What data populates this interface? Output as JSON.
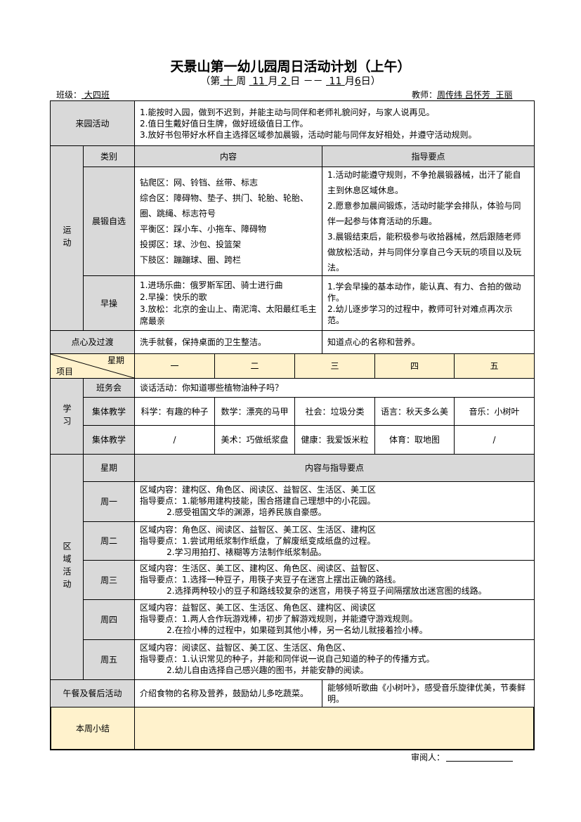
{
  "title": "天景山第一幼儿园周日活动计划（上午）",
  "week": {
    "open": "（第",
    "week_no": "十",
    "week_label": "周",
    "m1": "11",
    "m_label1": "月",
    "d1": "2",
    "d_label1": "日 －－",
    "m2": "11",
    "m_label2": "月",
    "d2": "6",
    "close": "日）"
  },
  "class": {
    "label": "班级：",
    "value": "大四班"
  },
  "teacher": {
    "label": "教师：",
    "value": "周传纬 吕怀芳  王丽"
  },
  "arrival": {
    "label": "来园活动",
    "lines": [
      "1.能按时入园，做到不迟到，并能主动与同伴和老师礼貌问好，与家人说再见。",
      "2.值日生戴好值日生牌，做好班级值日工作。",
      "3.放好书包带好水杯自主选择区域参加晨锻，活动时能与同伴友好相处，并遵守活动规则。"
    ]
  },
  "sport": {
    "label": "运动",
    "h_category": "类别",
    "h_content": "内容",
    "h_guide": "指导要点",
    "morning": {
      "label": "晨锻自选",
      "content": [
        "钻爬区：网、铃铛、丝带、标志",
        "综合区：障碍物、垫子、拱门、轮胎、轮胎、圈、跳绳、标志符号",
        "平衡区：踩小车、小拖车、障碍物",
        "投掷区：球、沙包、投篮架",
        "下肢区：蹦蹦球、圈、跨栏"
      ],
      "guide": [
        "1.活动时能遵守规则，不争抢晨锻器械，出汗了能自主到休息区域休息。",
        "2.愿意参加晨间锻炼，活动时能学会排队，体验与同伴一起参与体育活动的乐趣。",
        "3.晨锻结束后，能积极参与收拾器械，然后跟随老师做放松活动，并与同伴分享自己今天玩的项目以及玩法。"
      ]
    },
    "exercise": {
      "label": "早操",
      "content": [
        "1.进场乐曲：俄罗斯军团、骑士进行曲",
        "2.早操：快乐的歌",
        "3.放松：北京的金山上、南泥湾、太阳最红毛主席最亲"
      ],
      "guide": [
        "1.学会早操的基本动作，能认真、有力、合拍的做动作。",
        "2.幼儿逐步学习的过程中，教师可针对难点再次示范。"
      ]
    }
  },
  "snack": {
    "label": "点心及过渡",
    "content": "洗手就餐，保持桌面的卫生整洁。",
    "guide": "知道点心的名称和营养。"
  },
  "header": {
    "weekday": "星期",
    "item": "项目",
    "days": [
      "一",
      "二",
      "三",
      "四",
      "五"
    ]
  },
  "study": {
    "label": "学习",
    "meeting_label": "班务会",
    "meeting": "谈话活动：你知道哪些植物油种子吗？",
    "teach1_label": "集体教学",
    "teach1": [
      "科学：有趣的种子",
      "数学：漂亮的马甲",
      "社会：垃圾分类",
      "语言：秋天多么美",
      "音乐：小树叶"
    ],
    "teach2_label": "集体教学",
    "teach2": [
      "/",
      "美术：巧做纸浆盘",
      "健康：我爱饭米粒",
      "体育：取地图",
      "/"
    ]
  },
  "area": {
    "label": "区域活动",
    "h_day": "星期",
    "h_content": "内容与指导要点",
    "days": [
      {
        "label": "周一",
        "lines": [
          "区域内容：建构区、角色区、阅读区、益智区、生活区、美工区",
          "指导要点：1.能够用建构技能，围合搭建自己理想中的小花园。",
          "          2.感受祖国文华的渊源，培养民族自豪感。"
        ]
      },
      {
        "label": "周二",
        "lines": [
          "区域内容：角色区、阅读区、益智区、美工区、生活区、建构区",
          "指导要点：1.尝试用纸浆制作纸盘，了解废纸变成纸盘的过程。",
          "          2.学习用拍打、裱糊等方法制作纸浆制品。"
        ]
      },
      {
        "label": "周三",
        "lines": [
          "区域内容：生活区、美工区、建构区、角色区、阅读区、益智区、",
          "指导要点：1.选择一种豆子，用筷子夹豆子在迷宫上摆出正确的路线。",
          "          2.选择两种较小的豆子和路线较复杂的迷宫，用筷子将豆子间隔摆放出迷宫图的线路。"
        ]
      },
      {
        "label": "周四",
        "lines": [
          "区域内容：益智区、美工区、生活区、角色区、建构区、阅读区",
          "指导要点：1.两人合作玩游戏棒，初步了解游戏规则，并能遵守游戏规则。",
          "          2.在捡小棒的过程中，如果碰到其他小棒，另一名幼儿就接着捡小棒。"
        ]
      },
      {
        "label": "周五",
        "lines": [
          "区域内容：阅读区、益智区、美工区、生活区、角色区、",
          "指导要点：1.认识常见的种子，并能和同伴说一说自己知道的种子的传播方式。",
          "          2.幼儿自由选择自己感兴趣的图书，并能安静的阅读。"
        ]
      }
    ]
  },
  "lunch": {
    "label": "午餐及餐后活动",
    "content": "介绍食物的名称及营养，鼓励幼儿多吃蔬菜。",
    "guide": "能够倾听歌曲《小树叶》，感受音乐旋律优美，节奏鲜明。"
  },
  "summary": {
    "label": "本周小结",
    "content": ""
  },
  "reviewer": {
    "label": "审阅人：",
    "value": ""
  },
  "colors": {
    "label_gray": "#d9d9d9",
    "header_yellow": "#fff2cc"
  }
}
